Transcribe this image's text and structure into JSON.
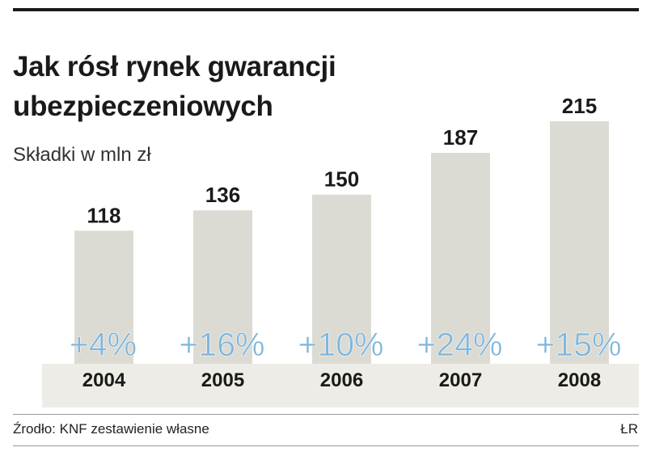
{
  "chart_data": {
    "type": "bar",
    "title": "Jak rósł rynek gwarancji ubezpieczeniowych",
    "subtitle": "Składki w mln zł",
    "categories": [
      "2004",
      "2005",
      "2006",
      "2007",
      "2008"
    ],
    "values": [
      118,
      136,
      150,
      187,
      215
    ],
    "growth_labels": [
      "+4%",
      "+16%",
      "+10%",
      "+24%",
      "+15%"
    ],
    "ylim": [
      0,
      215
    ],
    "grid": false,
    "legend": "none"
  },
  "colors": {
    "bar": "#dcdbd3",
    "baseband": "#edece6",
    "growth": "#7fb6dc",
    "text": "#1a1a1a"
  },
  "footer": {
    "source": "Źrodło: KNF zestawienie własne",
    "credit": "ŁR"
  }
}
